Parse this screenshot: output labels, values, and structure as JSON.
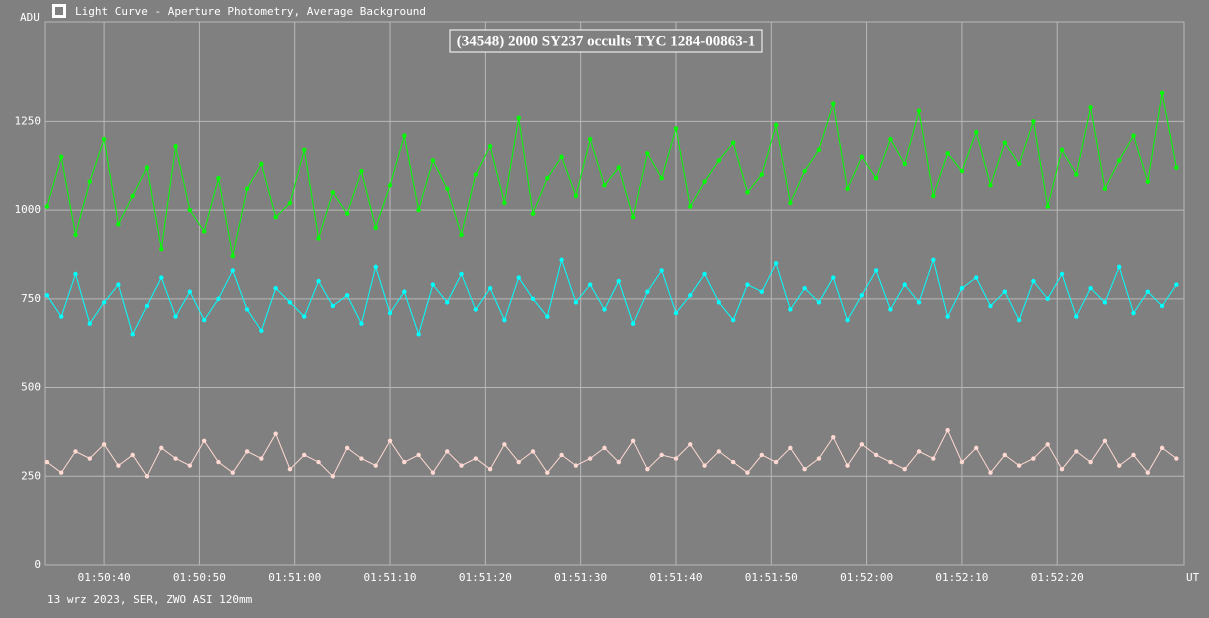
{
  "chart_data": {
    "type": "line",
    "window_title": "Light Curve - Aperture Photometry, Average Background",
    "title": "(34548) 2000 SY237 occults TYC 1284-00863-1",
    "y_label": "ADU",
    "x_label": "UT",
    "footer": "13 wrz 2023, SER, ZWO ASI 120mm",
    "x": [
      34,
      35.5,
      37,
      38.5,
      40,
      41.5,
      43,
      44.5,
      46,
      47.5,
      49,
      50.5,
      52,
      53.5,
      55,
      56.5,
      58,
      59.5,
      61,
      62.5,
      64,
      65.5,
      67,
      68.5,
      70,
      71.5,
      73,
      74.5,
      76,
      77.5,
      79,
      80.5,
      82,
      83.5,
      85,
      86.5,
      88,
      89.5,
      91,
      92.5,
      94,
      95.5,
      97,
      98.5,
      100,
      101.5,
      103,
      104.5,
      106,
      107.5,
      109,
      110.5,
      112,
      113.5,
      115,
      116.5,
      118,
      119.5,
      121,
      122.5,
      124,
      125.5,
      127,
      128.5,
      130,
      131.5,
      133,
      134.5,
      136,
      137.5,
      139,
      140.5,
      142,
      143.5,
      145,
      146.5,
      148,
      149.5,
      151,
      152.5
    ],
    "series": [
      {
        "color": "#00ff00",
        "values": [
          1010,
          1150,
          930,
          1080,
          1200,
          960,
          1040,
          1120,
          890,
          1180,
          1000,
          940,
          1090,
          870,
          1060,
          1130,
          980,
          1020,
          1170,
          920,
          1050,
          990,
          1110,
          950,
          1070,
          1210,
          1000,
          1140,
          1060,
          930,
          1100,
          1180,
          1020,
          1260,
          990,
          1090,
          1150,
          1040,
          1200,
          1070,
          1120,
          980,
          1160,
          1090,
          1230,
          1010,
          1080,
          1140,
          1190,
          1050,
          1100,
          1240,
          1020,
          1110,
          1170,
          1300,
          1060,
          1150,
          1090,
          1200,
          1130,
          1280,
          1040,
          1160,
          1110,
          1220,
          1070,
          1190,
          1130,
          1250,
          1010,
          1170,
          1100,
          1290,
          1060,
          1140,
          1210,
          1080,
          1330,
          1120
        ]
      },
      {
        "color": "#00ffff",
        "values": [
          760,
          700,
          820,
          680,
          740,
          790,
          650,
          730,
          810,
          700,
          770,
          690,
          750,
          830,
          720,
          660,
          780,
          740,
          700,
          800,
          730,
          760,
          680,
          840,
          710,
          770,
          650,
          790,
          740,
          820,
          720,
          780,
          690,
          810,
          750,
          700,
          860,
          740,
          790,
          720,
          800,
          680,
          770,
          830,
          710,
          760,
          820,
          740,
          690,
          790,
          770,
          850,
          720,
          780,
          740,
          810,
          690,
          760,
          830,
          720,
          790,
          740,
          860,
          700,
          780,
          810,
          730,
          770,
          690,
          800,
          750,
          820,
          700,
          780,
          740,
          840,
          710,
          770,
          730,
          790
        ]
      },
      {
        "color": "#ffd9d2",
        "values": [
          290,
          260,
          320,
          300,
          340,
          280,
          310,
          250,
          330,
          300,
          280,
          350,
          290,
          260,
          320,
          300,
          370,
          270,
          310,
          290,
          250,
          330,
          300,
          280,
          350,
          290,
          310,
          260,
          320,
          280,
          300,
          270,
          340,
          290,
          320,
          260,
          310,
          280,
          300,
          330,
          290,
          350,
          270,
          310,
          300,
          340,
          280,
          320,
          290,
          260,
          310,
          290,
          330,
          270,
          300,
          360,
          280,
          340,
          310,
          290,
          270,
          320,
          300,
          380,
          290,
          330,
          260,
          310,
          280,
          300,
          340,
          270,
          320,
          290,
          350,
          280,
          310,
          260,
          330,
          300
        ]
      }
    ],
    "xlim": [
      33.8,
      153.3
    ],
    "xticks": [
      {
        "value": 40,
        "label": "01:50:40"
      },
      {
        "value": 50,
        "label": "01:50:50"
      },
      {
        "value": 60,
        "label": "01:51:00"
      },
      {
        "value": 70,
        "label": "01:51:10"
      },
      {
        "value": 80,
        "label": "01:51:20"
      },
      {
        "value": 90,
        "label": "01:51:30"
      },
      {
        "value": 100,
        "label": "01:51:40"
      },
      {
        "value": 110,
        "label": "01:51:50"
      },
      {
        "value": 120,
        "label": "01:52:00"
      },
      {
        "value": 130,
        "label": "01:52:10"
      },
      {
        "value": 140,
        "label": "01:52:20"
      }
    ],
    "ylim": [
      0,
      1530
    ],
    "yticks": [
      0,
      250,
      500,
      750,
      1000,
      1250
    ],
    "grid": true
  }
}
